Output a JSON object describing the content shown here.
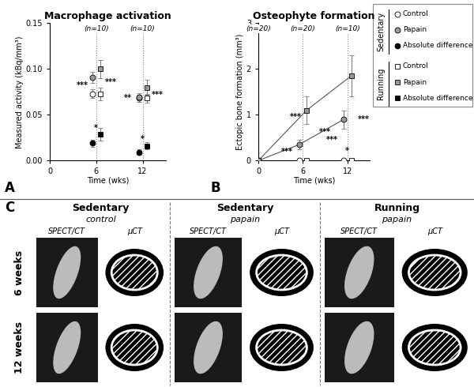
{
  "chart_data": [
    {
      "type": "scatter",
      "panel_label": "A",
      "title": "Macrophage activation",
      "x_label": "Time (wks)",
      "y_label": "Measured activity (kBq/mm³)",
      "xlim": [
        0,
        15
      ],
      "xticks": [
        0,
        6,
        12
      ],
      "ylim": [
        0,
        0.15
      ],
      "yticks": [
        {
          "value": 0,
          "label": "0.00"
        },
        {
          "value": 0.05,
          "label": "0.05"
        },
        {
          "value": 0.1,
          "label": "0.10"
        },
        {
          "value": 0.15,
          "label": "0.15"
        }
      ],
      "group_sizes": [
        {
          "x": 6,
          "label": "(n=10)"
        },
        {
          "x": 12,
          "label": "(n=10)"
        }
      ],
      "annotations": [
        {
          "text": "***",
          "x": 4.2,
          "y": 0.082
        },
        {
          "text": "***",
          "x": 7.9,
          "y": 0.086
        },
        {
          "text": "*",
          "x": 6,
          "y": 0.036
        },
        {
          "text": "**",
          "x": 10.1,
          "y": 0.068
        },
        {
          "text": "***",
          "x": 13.9,
          "y": 0.072
        },
        {
          "text": "*",
          "x": 12,
          "y": 0.024
        }
      ],
      "series": [
        {
          "name": "Control",
          "group": "Sedentary",
          "x": [
            5.5,
            11.5
          ],
          "values": [
            0.073,
            0.068
          ],
          "errors": [
            0.005,
            0.004
          ],
          "marker": "circle",
          "color": "#ffffff",
          "line_style": "none"
        },
        {
          "name": "Papain",
          "group": "Sedentary",
          "x": [
            5.5,
            11.5
          ],
          "values": [
            0.091,
            0.069
          ],
          "errors": [
            0.006,
            0.005
          ],
          "marker": "circle",
          "color": "#999999",
          "line_style": "none"
        },
        {
          "name": "Absolute difference",
          "group": "Sedentary",
          "x": [
            5.5,
            11.5
          ],
          "values": [
            0.019,
            0.009
          ],
          "errors": [
            0.004,
            0.003
          ],
          "marker": "circle",
          "color": "#000000",
          "line_style": "none"
        },
        {
          "name": "Control",
          "group": "Running",
          "x": [
            6.5,
            12.5
          ],
          "values": [
            0.073,
            0.068
          ],
          "errors": [
            0.007,
            0.005
          ],
          "marker": "square",
          "color": "#ffffff",
          "line_style": "none"
        },
        {
          "name": "Papain",
          "group": "Running",
          "x": [
            6.5,
            12.5
          ],
          "values": [
            0.1,
            0.08
          ],
          "errors": [
            0.01,
            0.008
          ],
          "marker": "square",
          "color": "#999999",
          "line_style": "none"
        },
        {
          "name": "Absolute difference",
          "group": "Running",
          "x": [
            6.5,
            12.5
          ],
          "values": [
            0.029,
            0.016
          ],
          "errors": [
            0.007,
            0.004
          ],
          "marker": "square",
          "color": "#000000",
          "line_style": "none"
        }
      ]
    },
    {
      "type": "line",
      "panel_label": "B",
      "title": "Osteophyte formation",
      "x_label": "Time (wks)",
      "y_label": "Ectopic bone formation (mm³)",
      "xlim": [
        0,
        15
      ],
      "xticks": [
        0,
        6,
        12
      ],
      "ylim": [
        0,
        3
      ],
      "yticks": [
        0,
        1,
        2,
        3
      ],
      "group_sizes": [
        {
          "x": 0,
          "label": "(n=20)"
        },
        {
          "x": 6,
          "label": "(n=20)"
        },
        {
          "x": 12,
          "label": "(n=10)"
        }
      ],
      "annotations": [
        {
          "text": "***",
          "x": 3.9,
          "y": 0.2
        },
        {
          "text": "***",
          "x": 5.0,
          "y": 0.95
        },
        {
          "text": "***",
          "x": 9.0,
          "y": 0.62
        },
        {
          "text": "***",
          "x": 9.9,
          "y": 0.45
        },
        {
          "text": "*",
          "x": 12,
          "y": 0.22
        },
        {
          "text": "***",
          "x": 14.2,
          "y": 0.9
        }
      ],
      "series": [
        {
          "name": "Control",
          "group": "Sedentary",
          "x": [
            0,
            5.5,
            11.5
          ],
          "values": [
            0,
            0,
            0
          ],
          "errors": [
            0,
            0,
            0
          ],
          "marker": "circle",
          "color": "#ffffff",
          "line_style": "none"
        },
        {
          "name": "Papain",
          "group": "Sedentary",
          "x": [
            0,
            5.5,
            11.5
          ],
          "values": [
            0,
            0.35,
            0.9
          ],
          "errors": [
            0,
            0.1,
            0.2
          ],
          "marker": "circle",
          "color": "#999999",
          "line_style": "solid"
        },
        {
          "name": "Control",
          "group": "Running",
          "x": [
            0,
            6.5,
            12.5
          ],
          "values": [
            0,
            0,
            0
          ],
          "errors": [
            0,
            0,
            0
          ],
          "marker": "square",
          "color": "#ffffff",
          "line_style": "none"
        },
        {
          "name": "Papain",
          "group": "Running",
          "x": [
            0,
            6.5,
            12.5
          ],
          "values": [
            0,
            1.1,
            1.85
          ],
          "errors": [
            0,
            0.3,
            0.45
          ],
          "marker": "square",
          "color": "#999999",
          "line_style": "solid"
        }
      ]
    }
  ],
  "panel_c": {
    "panel_label": "C",
    "columns": [
      {
        "title": "Sedentary",
        "subtitle": "control"
      },
      {
        "title": "Sedentary",
        "subtitle": "papain"
      },
      {
        "title": "Running",
        "subtitle": "papain"
      }
    ],
    "image_labels": [
      "SPECT/CT",
      "µCT"
    ],
    "rows": [
      "6 weeks",
      "12 weeks"
    ]
  }
}
